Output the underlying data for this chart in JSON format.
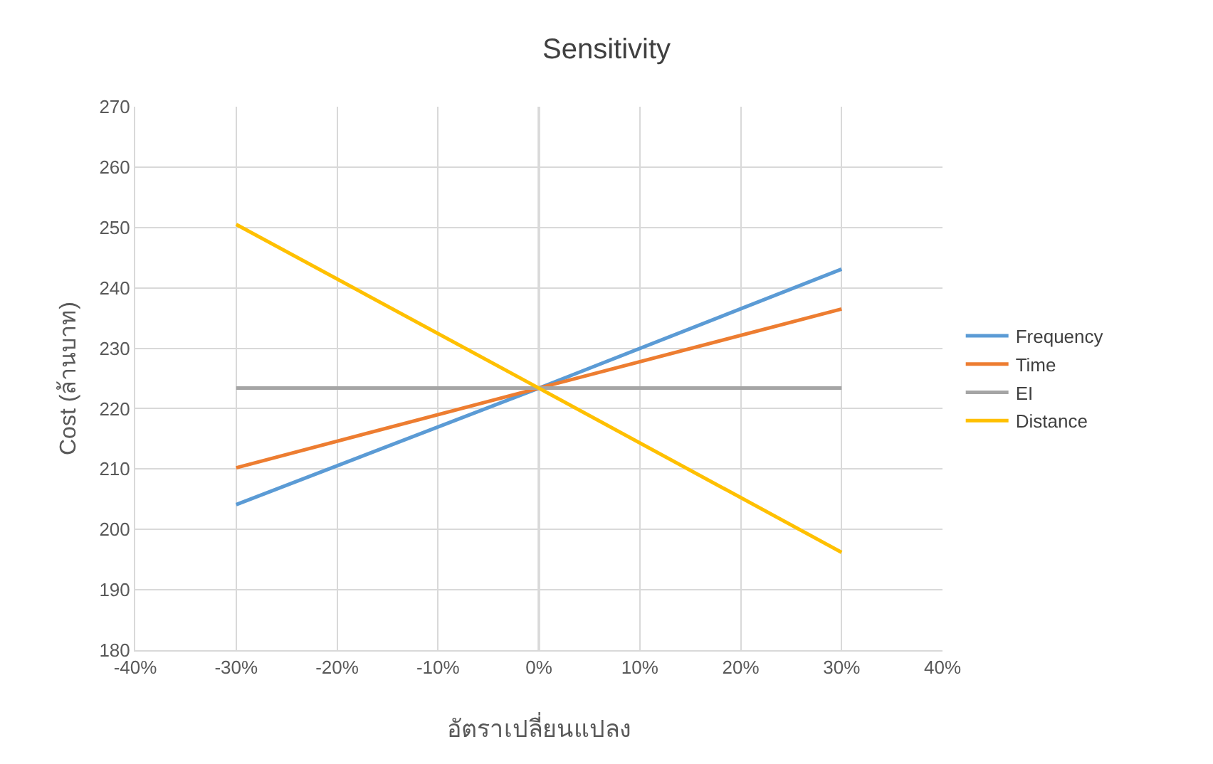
{
  "chart_data": {
    "type": "line",
    "title": "Sensitivity",
    "xlabel": "อัตราเปลี่ยนแปลง",
    "ylabel": "Cost (ล้านบาท)",
    "x": [
      -30,
      0,
      30
    ],
    "series": [
      {
        "name": "Frequency",
        "color": "#5b9bd5",
        "values": [
          204.1,
          223.4,
          243.1
        ]
      },
      {
        "name": "Time",
        "color": "#ed7d31",
        "values": [
          210.2,
          223.4,
          236.5
        ]
      },
      {
        "name": "EI",
        "color": "#a5a5a5",
        "values": [
          223.4,
          223.4,
          223.4
        ]
      },
      {
        "name": "Distance",
        "color": "#ffc000",
        "values": [
          250.5,
          223.4,
          196.2
        ]
      }
    ],
    "xlim": [
      -40,
      40
    ],
    "xticks": [
      {
        "value": -40,
        "label": "-40%"
      },
      {
        "value": -30,
        "label": "-30%"
      },
      {
        "value": -20,
        "label": "-20%"
      },
      {
        "value": -10,
        "label": "-10%"
      },
      {
        "value": 0,
        "label": "0%"
      },
      {
        "value": 10,
        "label": "10%"
      },
      {
        "value": 20,
        "label": "20%"
      },
      {
        "value": 30,
        "label": "30%"
      },
      {
        "value": 40,
        "label": "40%"
      }
    ],
    "ylim": [
      180,
      270
    ],
    "yticks": [
      180,
      190,
      200,
      210,
      220,
      230,
      240,
      250,
      260,
      270
    ],
    "grid": true,
    "legend": "right",
    "marker": "none",
    "line_style": "solid"
  }
}
